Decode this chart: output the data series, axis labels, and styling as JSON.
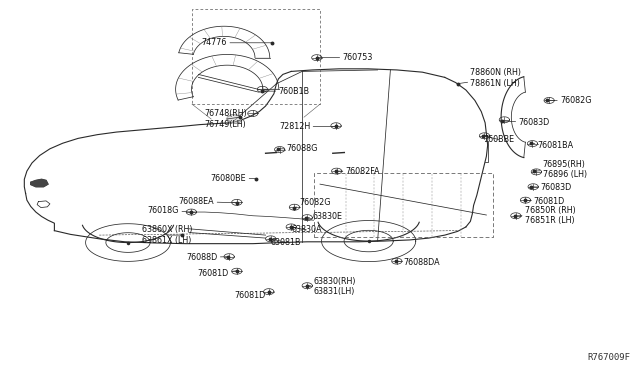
{
  "bg_color": "#ffffff",
  "fig_ref": "R767009F",
  "lc": "#2a2a2a",
  "parts": [
    {
      "dot": [
        0.425,
        0.885
      ],
      "lbl": [
        0.355,
        0.885
      ],
      "text": "74776",
      "ha": "right"
    },
    {
      "dot": [
        0.495,
        0.845
      ],
      "lbl": [
        0.535,
        0.845
      ],
      "text": "760753",
      "ha": "left"
    },
    {
      "dot": [
        0.41,
        0.755
      ],
      "lbl": [
        0.435,
        0.755
      ],
      "text": "760B1B",
      "ha": "left"
    },
    {
      "dot": [
        0.375,
        0.685
      ],
      "lbl": [
        0.32,
        0.68
      ],
      "text": "76748(RH)\n76749(LH)",
      "ha": "left"
    },
    {
      "dot": [
        0.525,
        0.66
      ],
      "lbl": [
        0.485,
        0.66
      ],
      "text": "72812H",
      "ha": "right"
    },
    {
      "dot": [
        0.715,
        0.775
      ],
      "lbl": [
        0.735,
        0.79
      ],
      "text": "78860N (RH)\n78861N (LH)",
      "ha": "left"
    },
    {
      "dot": [
        0.855,
        0.73
      ],
      "lbl": [
        0.875,
        0.73
      ],
      "text": "76082G",
      "ha": "left"
    },
    {
      "dot": [
        0.785,
        0.675
      ],
      "lbl": [
        0.81,
        0.67
      ],
      "text": "76083D",
      "ha": "left"
    },
    {
      "dot": [
        0.755,
        0.635
      ],
      "lbl": [
        0.755,
        0.625
      ],
      "text": "760BBE",
      "ha": "left"
    },
    {
      "dot": [
        0.83,
        0.615
      ],
      "lbl": [
        0.84,
        0.608
      ],
      "text": "76081BA",
      "ha": "left"
    },
    {
      "dot": [
        0.435,
        0.6
      ],
      "lbl": [
        0.448,
        0.6
      ],
      "text": "76088G",
      "ha": "left"
    },
    {
      "dot": [
        0.525,
        0.54
      ],
      "lbl": [
        0.54,
        0.54
      ],
      "text": "76082FA",
      "ha": "left"
    },
    {
      "dot": [
        0.4,
        0.52
      ],
      "lbl": [
        0.385,
        0.52
      ],
      "text": "76080BE",
      "ha": "right"
    },
    {
      "dot": [
        0.835,
        0.54
      ],
      "lbl": [
        0.848,
        0.545
      ],
      "text": "76895(RH)\n76896 (LH)",
      "ha": "left"
    },
    {
      "dot": [
        0.83,
        0.498
      ],
      "lbl": [
        0.845,
        0.495
      ],
      "text": "76083D",
      "ha": "left"
    },
    {
      "dot": [
        0.82,
        0.462
      ],
      "lbl": [
        0.833,
        0.458
      ],
      "text": "76081D",
      "ha": "left"
    },
    {
      "dot": [
        0.805,
        0.42
      ],
      "lbl": [
        0.82,
        0.42
      ],
      "text": "76850R (RH)\n76851R (LH)",
      "ha": "left"
    },
    {
      "dot": [
        0.37,
        0.455
      ],
      "lbl": [
        0.335,
        0.458
      ],
      "text": "76088EA",
      "ha": "right"
    },
    {
      "dot": [
        0.46,
        0.442
      ],
      "lbl": [
        0.468,
        0.455
      ],
      "text": "76082G",
      "ha": "left"
    },
    {
      "dot": [
        0.478,
        0.415
      ],
      "lbl": [
        0.488,
        0.418
      ],
      "text": "63830E",
      "ha": "left"
    },
    {
      "dot": [
        0.455,
        0.39
      ],
      "lbl": [
        0.455,
        0.382
      ],
      "text": "63830A",
      "ha": "left"
    },
    {
      "dot": [
        0.422,
        0.358
      ],
      "lbl": [
        0.422,
        0.349
      ],
      "text": "63081B",
      "ha": "left"
    },
    {
      "dot": [
        0.618,
        0.298
      ],
      "lbl": [
        0.63,
        0.295
      ],
      "text": "76088DA",
      "ha": "left"
    },
    {
      "dot": [
        0.356,
        0.31
      ],
      "lbl": [
        0.34,
        0.308
      ],
      "text": "76088D",
      "ha": "right"
    },
    {
      "dot": [
        0.37,
        0.272
      ],
      "lbl": [
        0.358,
        0.265
      ],
      "text": "76081D",
      "ha": "right"
    },
    {
      "dot": [
        0.48,
        0.232
      ],
      "lbl": [
        0.49,
        0.23
      ],
      "text": "63830(RH)\n63831(LH)",
      "ha": "left"
    },
    {
      "dot": [
        0.42,
        0.215
      ],
      "lbl": [
        0.415,
        0.205
      ],
      "text": "76081D",
      "ha": "right"
    },
    {
      "dot": [
        0.285,
        0.368
      ],
      "lbl": [
        0.222,
        0.368
      ],
      "text": "63860X (RH)\n63861X (LH)",
      "ha": "left"
    },
    {
      "dot": [
        0.298,
        0.43
      ],
      "lbl": [
        0.28,
        0.435
      ],
      "text": "76018G",
      "ha": "right"
    }
  ]
}
